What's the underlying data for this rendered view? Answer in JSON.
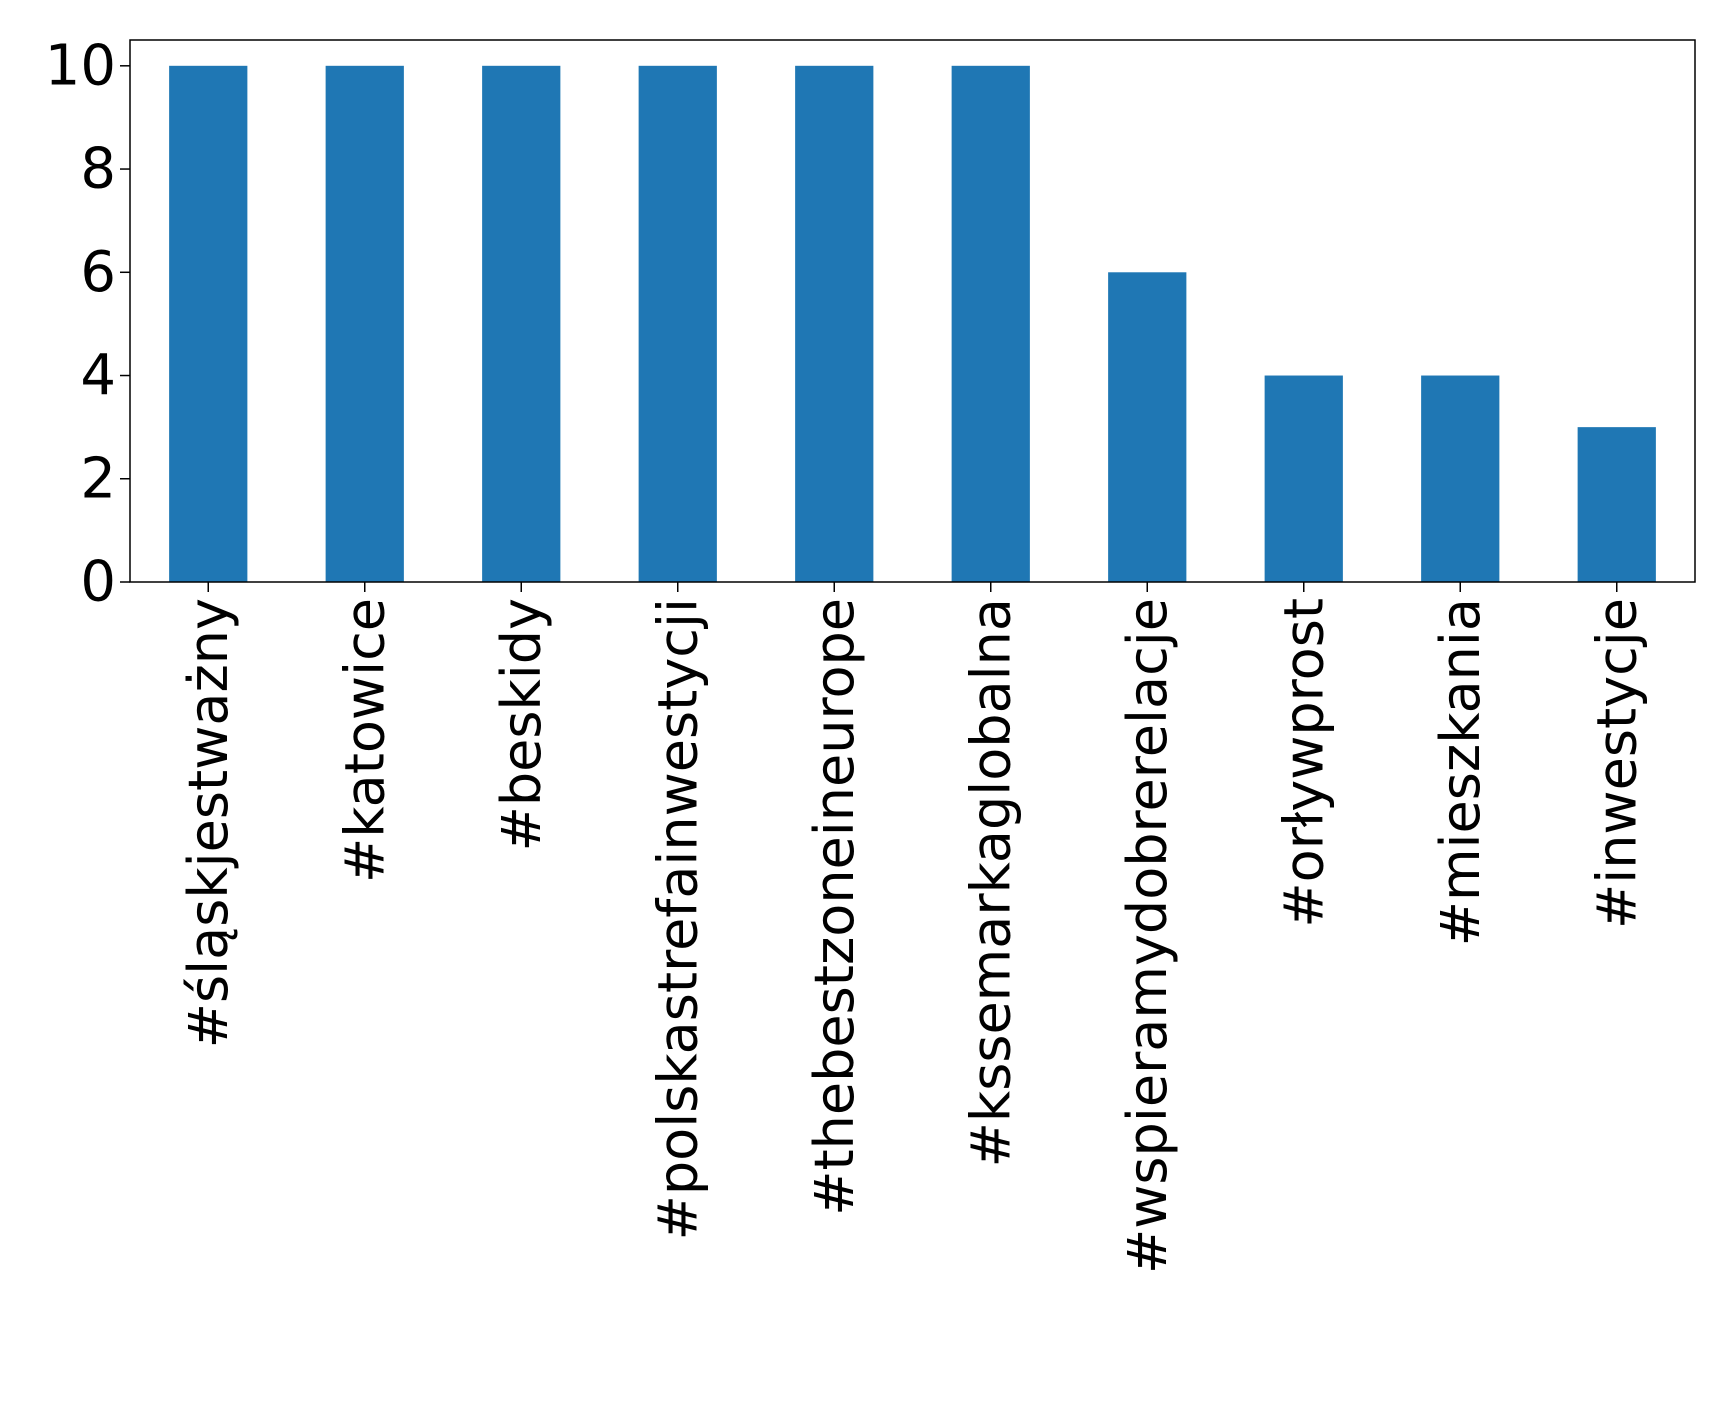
{
  "chart_data": {
    "type": "bar",
    "title": "",
    "xlabel": "",
    "ylabel": "",
    "categories": [
      "#śląskjestważny",
      "#katowice",
      "#beskidy",
      "#polskastrefainwestycji",
      "#thebestzoneineurope",
      "#kssemarkaglobalna",
      "#wspieramydobrerelacje",
      "#orływprost",
      "#mieszkania",
      "#inwestycje"
    ],
    "values": [
      10,
      10,
      10,
      10,
      10,
      10,
      6,
      4,
      4,
      3
    ],
    "ylim": [
      0,
      10.5
    ],
    "yticks": [
      0,
      2,
      4,
      6,
      8,
      10
    ],
    "bar_color": "#1f77b4",
    "grid": false,
    "legend": "none"
  }
}
